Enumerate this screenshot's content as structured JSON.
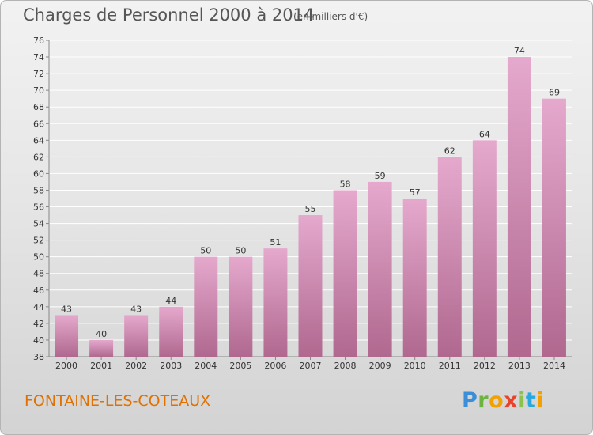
{
  "header": {
    "title": "Charges de Personnel 2000 à 2014",
    "subtitle": "(en milliers d'€)"
  },
  "footer": {
    "commune": "FONTAINE-LES-COTEAUX",
    "logo_text": "Proxiti"
  },
  "colors": {
    "bar_light": "#e5a9cd",
    "bar_dark": "#b0688f",
    "commune_text": "#e07000",
    "grid": "#ffffff"
  },
  "chart_data": {
    "type": "bar",
    "title": "Charges de Personnel 2000 à 2014",
    "subtitle": "(en milliers d'€)",
    "xlabel": "",
    "ylabel": "",
    "categories": [
      "2000",
      "2001",
      "2002",
      "2003",
      "2004",
      "2005",
      "2006",
      "2007",
      "2008",
      "2009",
      "2010",
      "2011",
      "2012",
      "2013",
      "2014"
    ],
    "values": [
      43,
      40,
      43,
      44,
      50,
      50,
      51,
      55,
      58,
      59,
      57,
      62,
      64,
      74,
      69
    ],
    "ylim": [
      38,
      76
    ],
    "yticks": [
      38,
      40,
      42,
      44,
      46,
      48,
      50,
      52,
      54,
      56,
      58,
      60,
      62,
      64,
      66,
      68,
      70,
      72,
      74,
      76
    ],
    "grid": true,
    "data_labels": true
  }
}
